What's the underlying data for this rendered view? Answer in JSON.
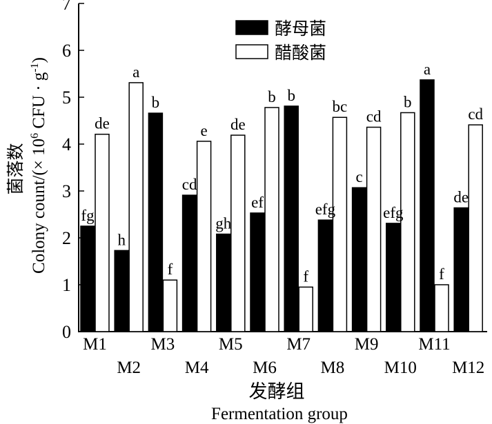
{
  "chart_data": {
    "type": "bar",
    "categories": [
      "M1",
      "M2",
      "M3",
      "M4",
      "M5",
      "M6",
      "M7",
      "M8",
      "M9",
      "M10",
      "M11",
      "M12"
    ],
    "series": [
      {
        "name": "酵母菌",
        "color": "#000000",
        "values": [
          2.25,
          1.73,
          4.66,
          2.91,
          2.08,
          2.53,
          4.81,
          2.38,
          3.07,
          2.31,
          5.37,
          2.64
        ],
        "labels": [
          "fg",
          "h",
          "b",
          "cd",
          "gh",
          "ef",
          "b",
          "efg",
          "c",
          "efg",
          "a",
          "de"
        ]
      },
      {
        "name": "醋酸菌",
        "color": "#ffffff",
        "values": [
          4.21,
          5.31,
          1.1,
          4.06,
          4.19,
          4.78,
          0.95,
          4.57,
          4.36,
          4.67,
          1.0,
          4.41
        ],
        "labels": [
          "de",
          "a",
          "f",
          "e",
          "de",
          "b",
          "f",
          "bc",
          "cd",
          "b",
          "f",
          "cd"
        ]
      }
    ],
    "ylim": [
      0,
      7
    ],
    "yticks": [
      "0",
      "1",
      "2",
      "3",
      "4",
      "5",
      "6",
      "7"
    ],
    "ylabel_cn": "菌落数",
    "ylabel_en": "Colony count/(× 10",
    "ylabel_exp": "6",
    "ylabel_tail": " CFU · g",
    "ylabel_tail_exp": "-1",
    "ylabel_close": ")",
    "xlabel_cn": "发酵组",
    "xlabel_en": "Fermentation group",
    "legend_position": "top-right"
  }
}
